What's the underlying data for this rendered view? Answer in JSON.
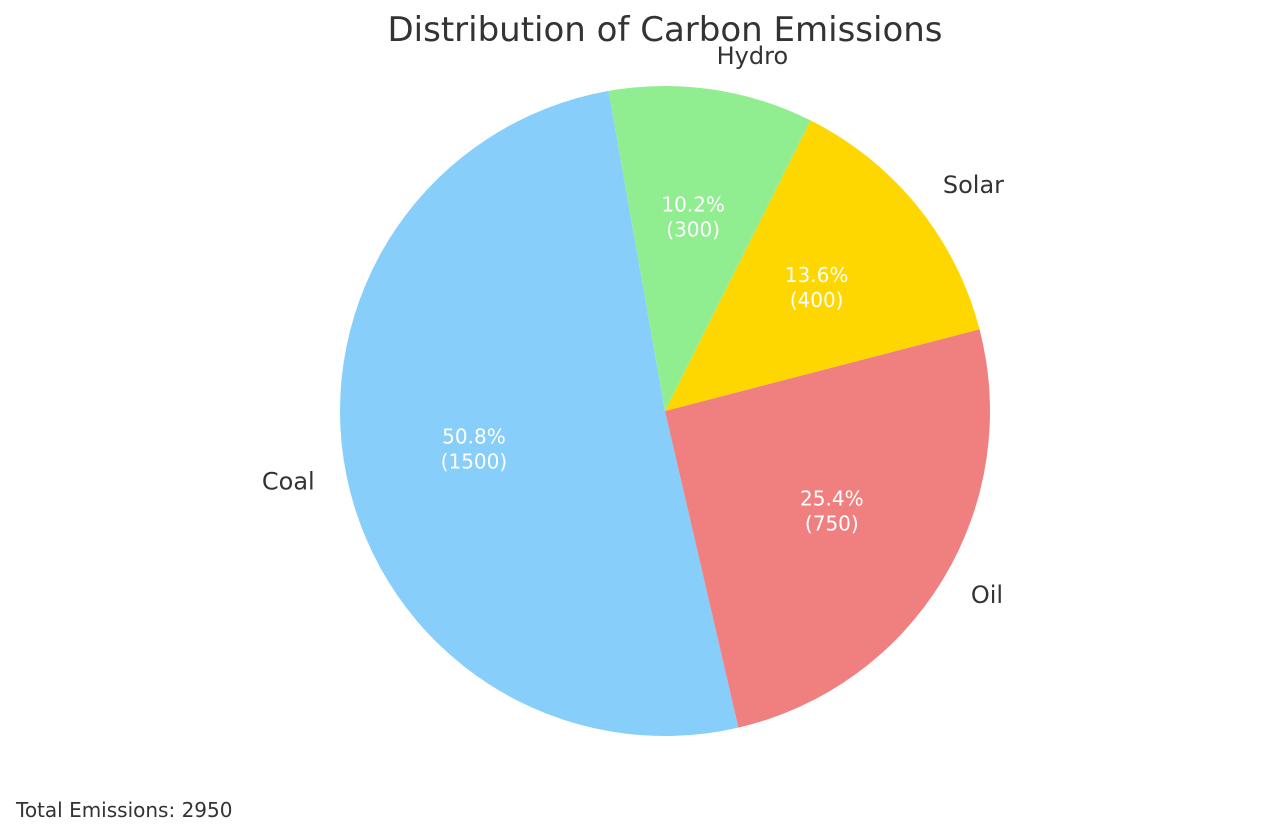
{
  "chart_data": {
    "type": "pie",
    "title": "Distribution of Carbon Emissions",
    "categories": [
      "Coal",
      "Oil",
      "Solar",
      "Hydro"
    ],
    "values": [
      1500,
      750,
      400,
      300
    ],
    "percent_labels": [
      "50.8%",
      "25.4%",
      "13.6%",
      "10.2%"
    ],
    "value_labels": [
      "(1500)",
      "(750)",
      "(400)",
      "(300)"
    ],
    "colors": [
      "#87CEFA",
      "#F08080",
      "#FFD700",
      "#90EE90"
    ],
    "start_angle_deg": 100,
    "direction": "counterclockwise"
  },
  "footer": {
    "total_text": "Total Emissions: 2950"
  }
}
